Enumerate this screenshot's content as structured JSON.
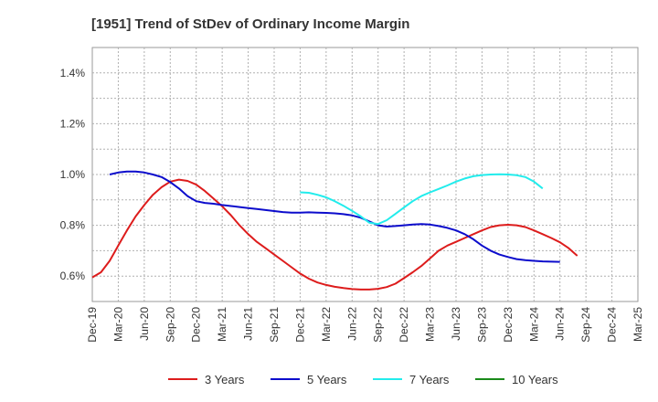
{
  "chart_data": {
    "type": "line",
    "title": "[1951]  Trend of StDev of Ordinary Income Margin",
    "xlabel": "",
    "ylabel": "",
    "ylim": [
      0.5,
      1.5
    ],
    "grid": true,
    "legend_position": "bottom",
    "y_ticks": [
      "0.6%",
      "0.8%",
      "1.0%",
      "1.2%",
      "1.4%"
    ],
    "x_ticks": [
      "Dec-19",
      "Mar-20",
      "Jun-20",
      "Sep-20",
      "Dec-20",
      "Mar-21",
      "Jun-21",
      "Sep-21",
      "Dec-21",
      "Mar-22",
      "Jun-22",
      "Sep-22",
      "Dec-22",
      "Mar-23",
      "Jun-23",
      "Sep-23",
      "Dec-23",
      "Mar-24",
      "Jun-24",
      "Sep-24",
      "Dec-24",
      "Mar-25"
    ],
    "series": [
      {
        "name": "3 Years",
        "color": "#dd1c1c",
        "start_index": 0,
        "values": [
          0.595,
          0.615,
          0.66,
          0.72,
          0.78,
          0.835,
          0.88,
          0.92,
          0.95,
          0.972,
          0.98,
          0.975,
          0.96,
          0.935,
          0.905,
          0.875,
          0.84,
          0.8,
          0.765,
          0.735,
          0.71,
          0.685,
          0.66,
          0.635,
          0.61,
          0.59,
          0.575,
          0.565,
          0.558,
          0.553,
          0.549,
          0.547,
          0.547,
          0.55,
          0.557,
          0.57,
          0.592,
          0.615,
          0.64,
          0.67,
          0.7,
          0.72,
          0.735,
          0.75,
          0.765,
          0.78,
          0.793,
          0.8,
          0.802,
          0.8,
          0.793,
          0.78,
          0.765,
          0.75,
          0.733,
          0.71,
          0.68
        ]
      },
      {
        "name": "5 Years",
        "color": "#0c0ccc",
        "start_index": 2,
        "values": [
          1.0,
          1.008,
          1.012,
          1.012,
          1.008,
          1.0,
          0.99,
          0.97,
          0.945,
          0.915,
          0.895,
          0.888,
          0.885,
          0.88,
          0.876,
          0.872,
          0.868,
          0.864,
          0.86,
          0.856,
          0.852,
          0.85,
          0.85,
          0.851,
          0.85,
          0.849,
          0.847,
          0.844,
          0.839,
          0.83,
          0.815,
          0.8,
          0.795,
          0.797,
          0.8,
          0.803,
          0.805,
          0.803,
          0.797,
          0.79,
          0.78,
          0.765,
          0.745,
          0.72,
          0.7,
          0.685,
          0.675,
          0.667,
          0.663,
          0.66,
          0.658,
          0.657,
          0.656
        ]
      },
      {
        "name": "7 Years",
        "color": "#22ecec",
        "start_index": 24,
        "values": [
          0.93,
          0.928,
          0.92,
          0.91,
          0.895,
          0.877,
          0.857,
          0.835,
          0.81,
          0.805,
          0.82,
          0.845,
          0.87,
          0.895,
          0.915,
          0.93,
          0.943,
          0.957,
          0.972,
          0.984,
          0.993,
          0.998,
          1.0,
          1.001,
          1.0,
          0.997,
          0.99,
          0.972,
          0.945
        ]
      },
      {
        "name": "10 Years",
        "color": "#1a8a1a",
        "start_index": 0,
        "values": []
      }
    ]
  }
}
